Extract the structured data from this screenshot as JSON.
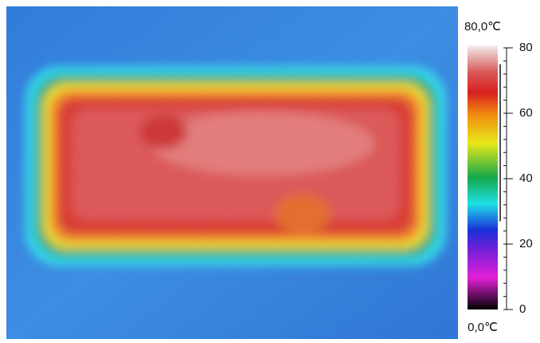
{
  "colorbar": {
    "max_label": "80,0℃",
    "min_label": "0,0℃",
    "lim": [
      0,
      80
    ],
    "ticks": [
      0,
      20,
      40,
      60,
      80
    ],
    "minor_step": 4,
    "range": [
      27,
      75
    ]
  }
}
